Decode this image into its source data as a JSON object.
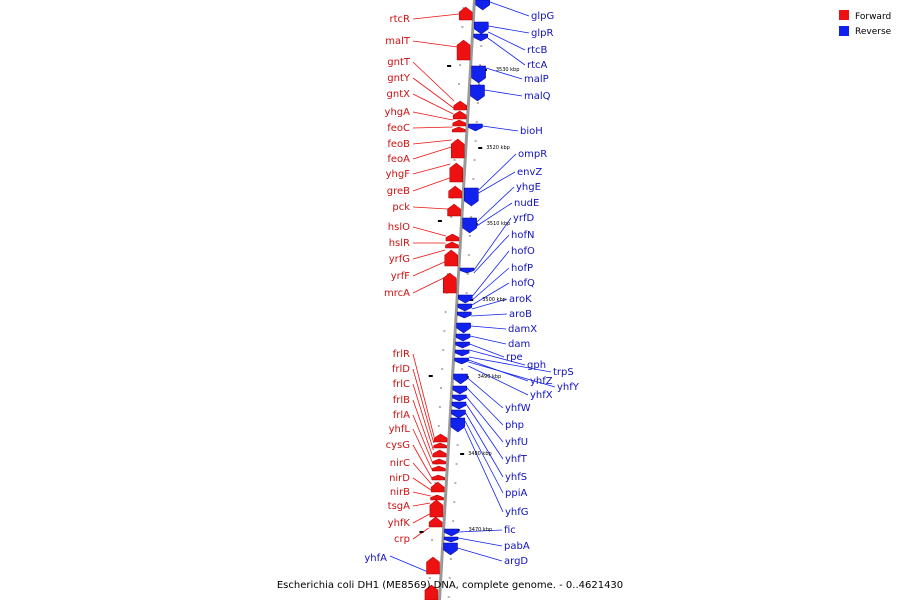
{
  "caption": "Escherichia coli DH1 (ME8569) DNA, complete genome. - 0..4621430",
  "legend": [
    {
      "label": "Forward",
      "color": "#ee1111"
    },
    {
      "label": "Reverse",
      "color": "#1122ee"
    }
  ],
  "colors": {
    "forward": "#ee1111",
    "reverse": "#1122ee",
    "axis": "#999999",
    "forward_text": "#cc1111",
    "reverse_text": "#1111bb"
  },
  "ticks": [
    "3530 kbp",
    "3520 kbp",
    "3510 kbp",
    "3500 kbp",
    "3490 kbp",
    "3480 kbp",
    "3470 kbp"
  ],
  "forward_genes": [
    "rtcR",
    "malT",
    "gntT",
    "gntY",
    "gntX",
    "yhgA",
    "feoC",
    "feoB",
    "feoA",
    "yhgF",
    "greB",
    "pck",
    "hslO",
    "hslR",
    "yrfG",
    "yrfF",
    "mrcA",
    "frlR",
    "frlD",
    "frlC",
    "frlB",
    "frlA",
    "yhfL",
    "cysG",
    "nirC",
    "nirD",
    "nirB",
    "tsgA",
    "yhfK",
    "crp"
  ],
  "reverse_genes": [
    "glpG",
    "glpR",
    "rtcB",
    "rtcA",
    "malP",
    "malQ",
    "bioH",
    "ompR",
    "envZ",
    "yhgE",
    "nudE",
    "yrfD",
    "hofN",
    "hofO",
    "hofP",
    "hofQ",
    "aroK",
    "aroB",
    "damX",
    "dam",
    "rpe",
    "gph",
    "trpS",
    "yhfZ",
    "yhfY",
    "yhfX",
    "yhfW",
    "php",
    "yhfU",
    "yhfT",
    "yhfS",
    "ppiA",
    "yhfG",
    "fic",
    "pabA",
    "argD",
    "yhfA"
  ]
}
